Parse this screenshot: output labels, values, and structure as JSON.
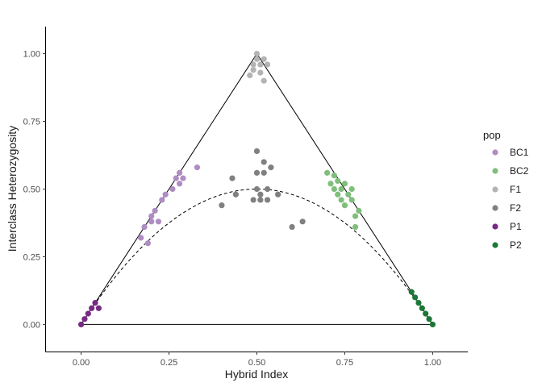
{
  "chart_data": {
    "type": "scatter",
    "xlabel": "Hybrid Index",
    "ylabel": "Interclass Heterozygosity",
    "xlim": [
      -0.1,
      1.1
    ],
    "ylim": [
      -0.1,
      1.1
    ],
    "x_ticks": [
      "0.00",
      "0.25",
      "0.50",
      "0.75",
      "1.00"
    ],
    "y_ticks": [
      "0.00",
      "0.25",
      "0.50",
      "0.75",
      "1.00"
    ],
    "grid": false,
    "legend": {
      "title": "pop",
      "position": "right"
    },
    "reference_lines": [
      {
        "name": "triangle",
        "style": "solid",
        "points": [
          [
            0,
            0
          ],
          [
            0.5,
            1
          ],
          [
            1,
            0
          ],
          [
            0,
            0
          ]
        ]
      },
      {
        "name": "hwe-curve",
        "style": "dashed",
        "function": "2*x*(1-x)"
      }
    ],
    "series": [
      {
        "name": "BC1",
        "color": "#af8dc3",
        "points": [
          [
            0.17,
            0.32
          ],
          [
            0.19,
            0.3
          ],
          [
            0.18,
            0.36
          ],
          [
            0.2,
            0.38
          ],
          [
            0.2,
            0.4
          ],
          [
            0.21,
            0.42
          ],
          [
            0.22,
            0.38
          ],
          [
            0.23,
            0.46
          ],
          [
            0.24,
            0.48
          ],
          [
            0.26,
            0.5
          ],
          [
            0.27,
            0.54
          ],
          [
            0.28,
            0.52
          ],
          [
            0.28,
            0.56
          ],
          [
            0.29,
            0.54
          ],
          [
            0.33,
            0.58
          ]
        ]
      },
      {
        "name": "BC2",
        "color": "#7fbf7b",
        "points": [
          [
            0.7,
            0.56
          ],
          [
            0.71,
            0.52
          ],
          [
            0.72,
            0.5
          ],
          [
            0.72,
            0.55
          ],
          [
            0.73,
            0.48
          ],
          [
            0.73,
            0.53
          ],
          [
            0.74,
            0.46
          ],
          [
            0.74,
            0.5
          ],
          [
            0.75,
            0.44
          ],
          [
            0.75,
            0.52
          ],
          [
            0.76,
            0.48
          ],
          [
            0.77,
            0.46
          ],
          [
            0.77,
            0.5
          ],
          [
            0.78,
            0.4
          ],
          [
            0.78,
            0.36
          ],
          [
            0.79,
            0.42
          ]
        ]
      },
      {
        "name": "F1",
        "color": "#b3b3b3",
        "points": [
          [
            0.48,
            0.92
          ],
          [
            0.49,
            0.96
          ],
          [
            0.49,
            0.94
          ],
          [
            0.5,
            0.98
          ],
          [
            0.5,
            1.0
          ],
          [
            0.51,
            0.96
          ],
          [
            0.51,
            0.93
          ],
          [
            0.52,
            0.98
          ],
          [
            0.52,
            0.9
          ],
          [
            0.53,
            0.96
          ]
        ]
      },
      {
        "name": "F2",
        "color": "#808080",
        "points": [
          [
            0.4,
            0.44
          ],
          [
            0.43,
            0.54
          ],
          [
            0.44,
            0.48
          ],
          [
            0.49,
            0.46
          ],
          [
            0.5,
            0.56
          ],
          [
            0.5,
            0.64
          ],
          [
            0.5,
            0.5
          ],
          [
            0.51,
            0.48
          ],
          [
            0.51,
            0.46
          ],
          [
            0.52,
            0.56
          ],
          [
            0.52,
            0.6
          ],
          [
            0.53,
            0.5
          ],
          [
            0.53,
            0.46
          ],
          [
            0.54,
            0.58
          ],
          [
            0.56,
            0.48
          ],
          [
            0.6,
            0.36
          ],
          [
            0.63,
            0.38
          ]
        ]
      },
      {
        "name": "P1",
        "color": "#762a83",
        "points": [
          [
            0.0,
            0.0
          ],
          [
            0.01,
            0.02
          ],
          [
            0.02,
            0.04
          ],
          [
            0.03,
            0.06
          ],
          [
            0.04,
            0.08
          ],
          [
            0.05,
            0.06
          ]
        ]
      },
      {
        "name": "P2",
        "color": "#1b7837",
        "points": [
          [
            0.94,
            0.12
          ],
          [
            0.95,
            0.1
          ],
          [
            0.96,
            0.08
          ],
          [
            0.97,
            0.06
          ],
          [
            0.98,
            0.04
          ],
          [
            0.99,
            0.02
          ],
          [
            1.0,
            0.0
          ]
        ]
      }
    ]
  }
}
